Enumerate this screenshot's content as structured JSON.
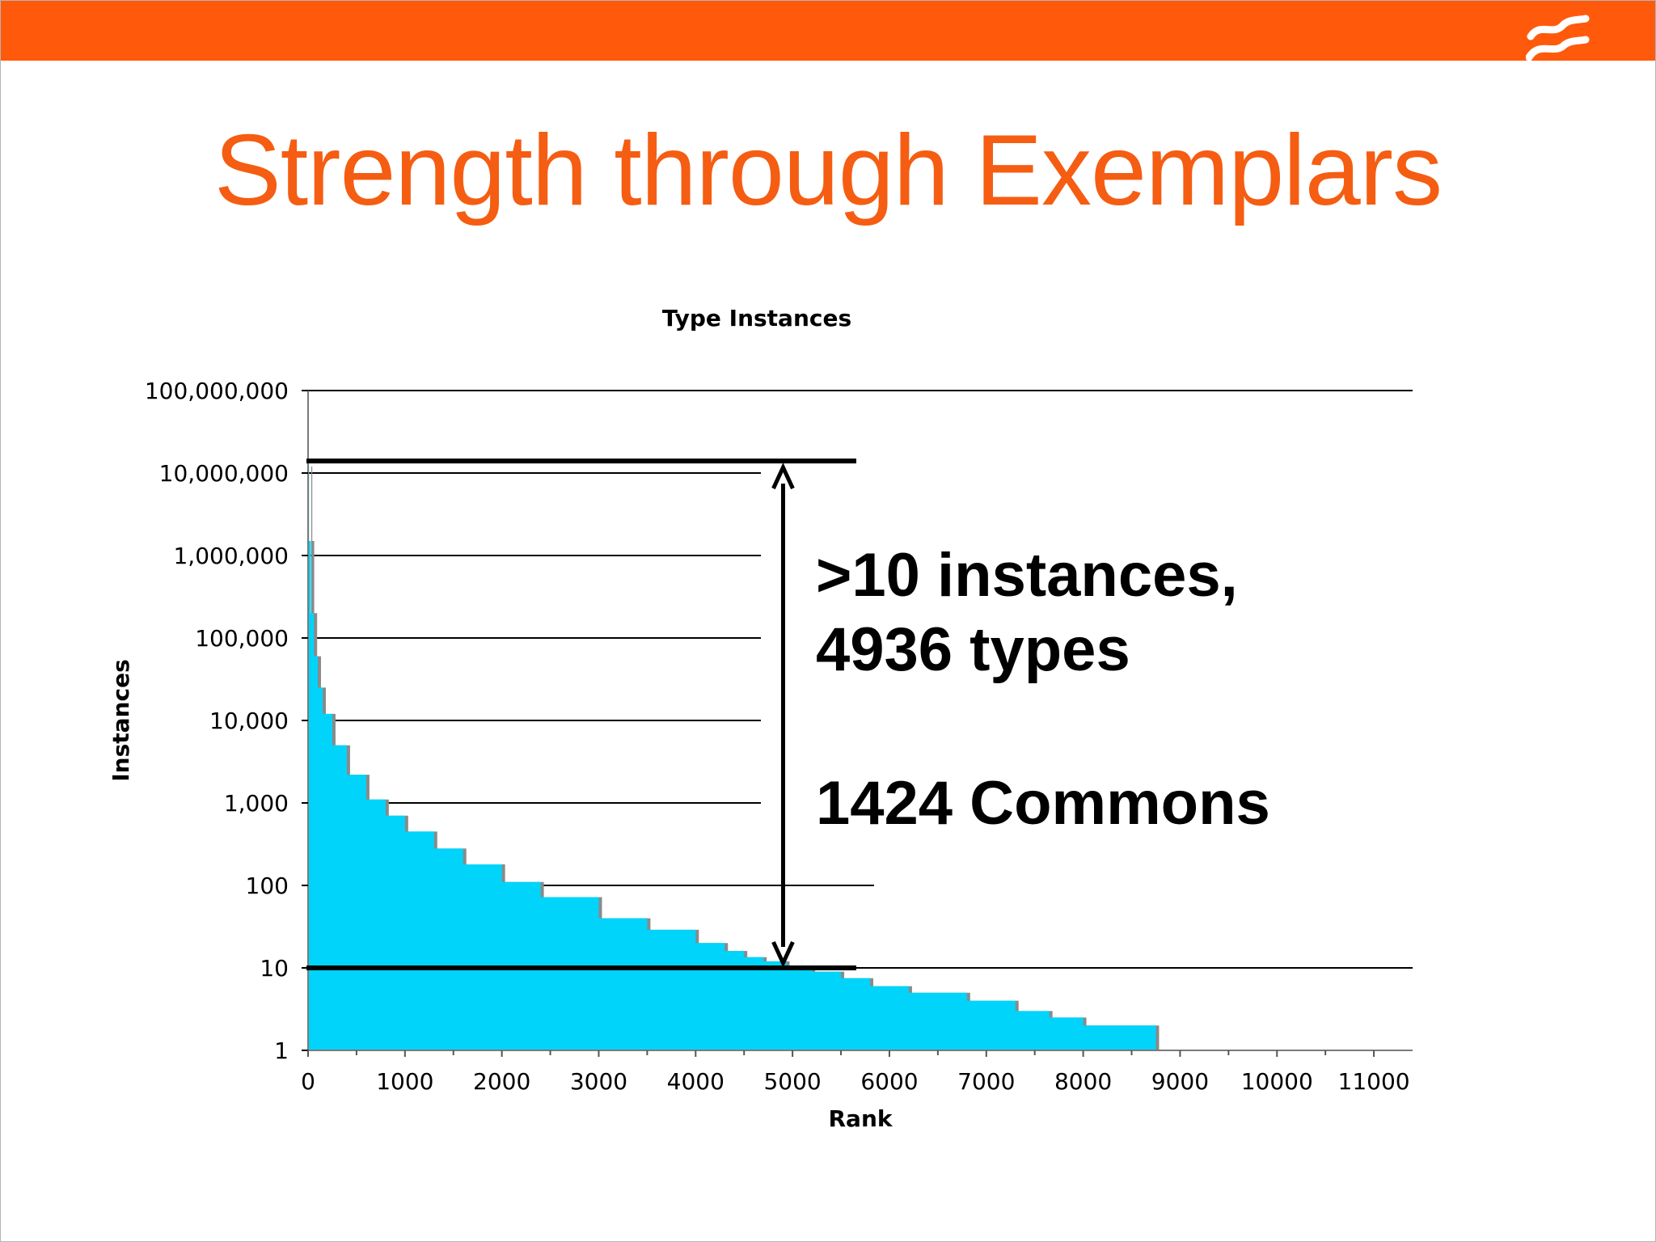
{
  "slide": {
    "title": "Strength through Exemplars",
    "accent_color": "#ff5a0c",
    "logo_icon": "wave-lines-icon"
  },
  "chart_data": {
    "type": "area",
    "title": "Type Instances",
    "xlabel": "Rank",
    "ylabel": "Instances",
    "x_scale": "linear",
    "y_scale": "log",
    "xlim": [
      0,
      11400
    ],
    "ylim": [
      1,
      100000000
    ],
    "x_ticks": [
      "0",
      "1000",
      "2000",
      "3000",
      "4000",
      "5000",
      "6000",
      "7000",
      "8000",
      "9000",
      "10000",
      "11000"
    ],
    "x_tick_values": [
      0,
      1000,
      2000,
      3000,
      4000,
      5000,
      6000,
      7000,
      8000,
      9000,
      10000,
      11000
    ],
    "y_ticks": [
      "1",
      "10",
      "100",
      "1,000",
      "10,000",
      "100,000",
      "1,000,000",
      "10,000,000",
      "100,000,000"
    ],
    "y_tick_values": [
      1,
      10,
      100,
      1000,
      10000,
      100000,
      1000000,
      10000000,
      100000000
    ],
    "grid": true,
    "series": [
      {
        "color": "#00d4fa",
        "x": [
          0,
          10,
          30,
          60,
          100,
          150,
          250,
          400,
          600,
          800,
          1000,
          1300,
          1600,
          2000,
          2400,
          3000,
          3500,
          4000,
          4300,
          4500,
          4700,
          4936,
          5200,
          5500,
          5800,
          6200,
          6800,
          7300,
          7650,
          8000,
          8500,
          8750
        ],
        "y": [
          12000000,
          1500000,
          200000,
          60000,
          25000,
          12000,
          5000,
          2200,
          1100,
          700,
          450,
          280,
          180,
          110,
          72,
          40,
          29,
          20,
          16,
          13.5,
          12,
          10,
          9,
          7.5,
          6,
          5,
          4,
          3,
          2.5,
          2,
          2,
          2
        ]
      }
    ],
    "annotations": [
      {
        "text": ">10 instances,",
        "type": "callout"
      },
      {
        "text": "4936 types",
        "type": "callout"
      },
      {
        "text": "1424 Commons",
        "type": "callout"
      }
    ],
    "reference_lines": [
      {
        "axis": "y",
        "value": 14000000
      },
      {
        "axis": "y",
        "value": 10
      }
    ],
    "range_arrow": {
      "x": 4936,
      "from": 10,
      "to": 14000000
    }
  }
}
